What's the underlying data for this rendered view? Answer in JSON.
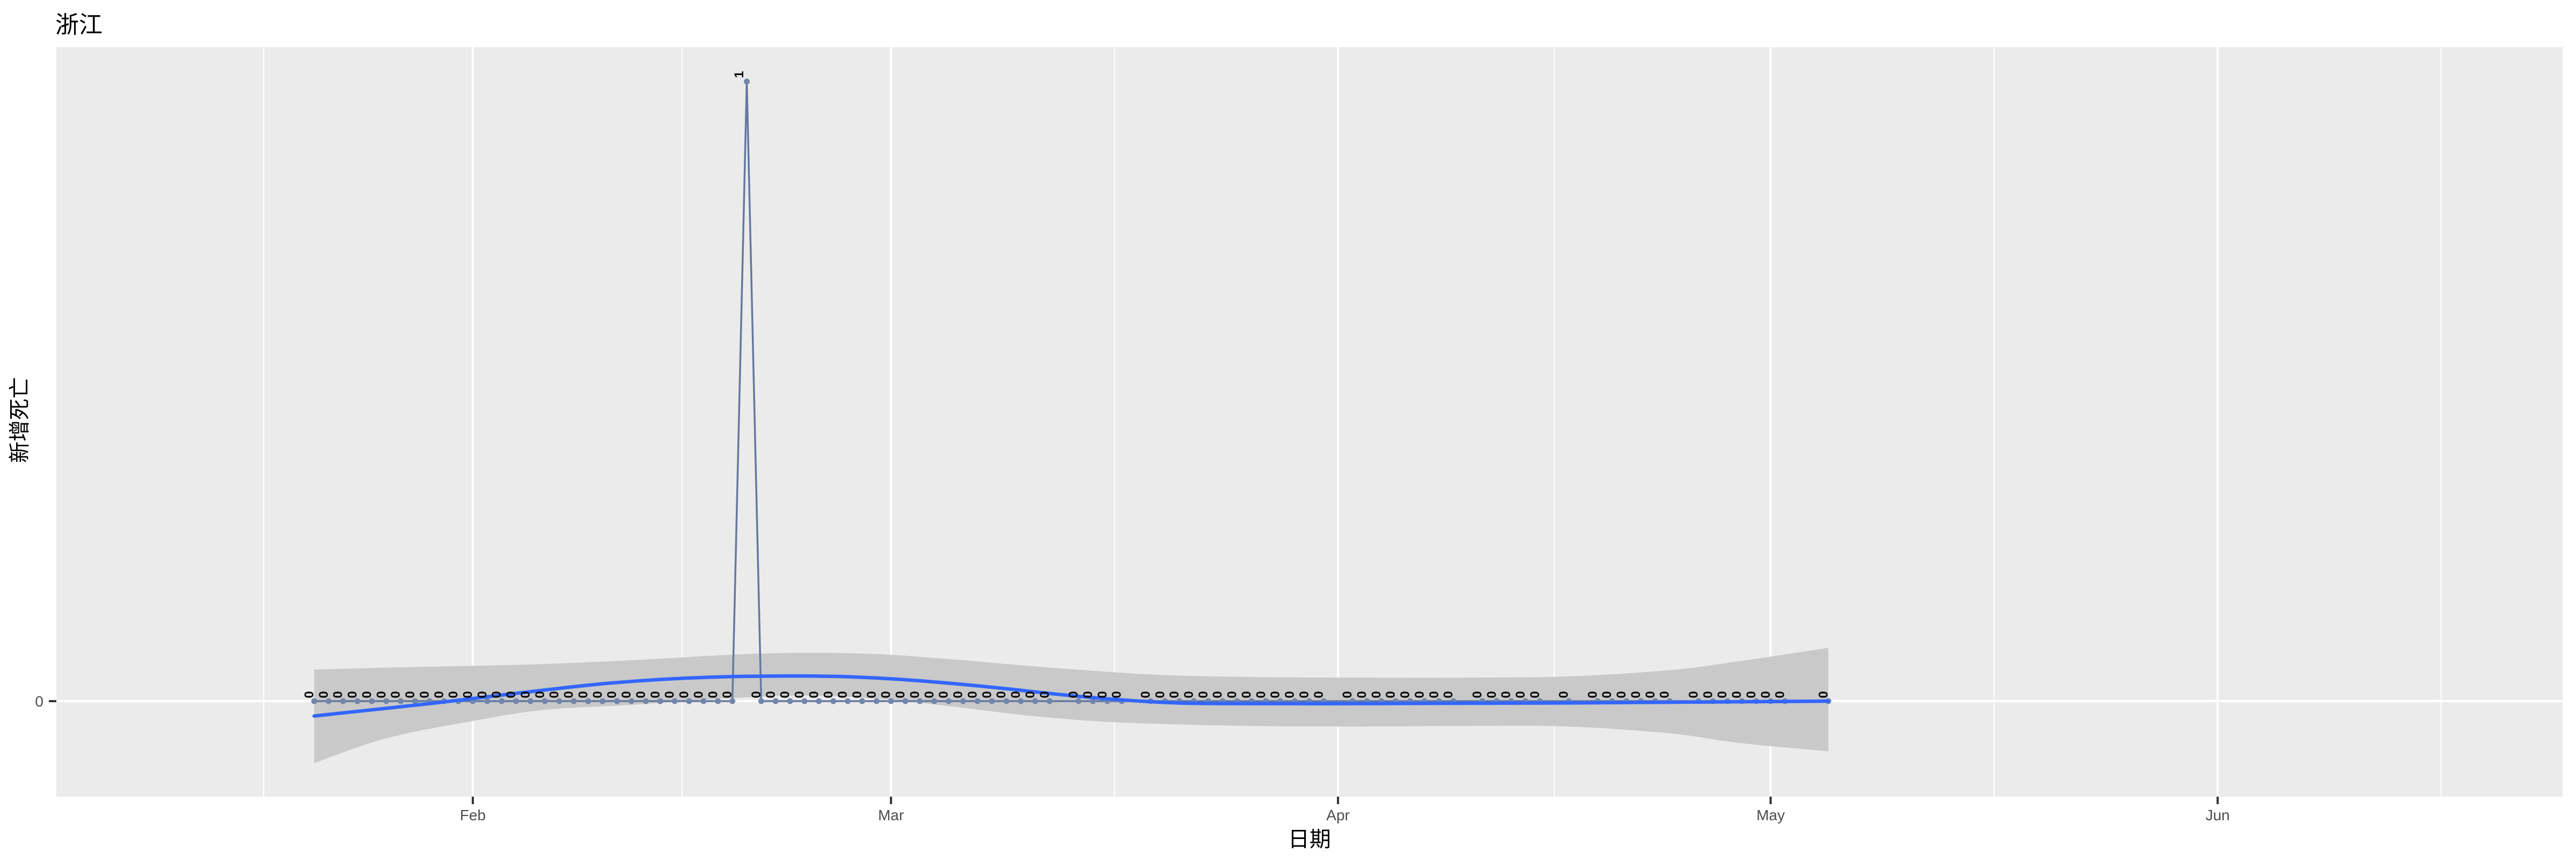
{
  "title": "浙江",
  "axes": {
    "x_title": "日期",
    "y_title": "新增死亡",
    "x_ticks": [
      {
        "label": "Feb",
        "date": "2020-02-01"
      },
      {
        "label": "Mar",
        "date": "2020-03-01"
      },
      {
        "label": "Apr",
        "date": "2020-04-01"
      },
      {
        "label": "May",
        "date": "2020-05-01"
      },
      {
        "label": "Jun",
        "date": "2020-06-01"
      }
    ],
    "y_ticks": [
      {
        "label": "0",
        "value": 0
      }
    ]
  },
  "chart_data": {
    "type": "line",
    "title": "浙江",
    "xlabel": "日期",
    "ylabel": "新增死亡",
    "x_range": [
      "2020-01-03",
      "2020-06-25"
    ],
    "ylim": [
      -0.154,
      1.055
    ],
    "grid": "major month gridlines + mid-month minor gridlines, horizontal line at 0",
    "points": {
      "start_date": "2020-01-21",
      "end_date": "2020-05-05",
      "default_value": 0,
      "exceptions": [
        {
          "date": "2020-02-20",
          "value": 1
        }
      ],
      "missing_dates": [
        "2020-03-13",
        "2020-03-18",
        "2020-04-01",
        "2020-04-10",
        "2020-04-16",
        "2020-04-18",
        "2020-04-25",
        "2020-05-03",
        "2020-05-04"
      ],
      "label_each_point_with_value": true,
      "label_rotation_deg": -90
    },
    "smooth_line": [
      [
        "2020-01-21",
        -0.024
      ],
      [
        "2020-01-25",
        -0.014
      ],
      [
        "2020-01-29",
        -0.004
      ],
      [
        "2020-02-02",
        0.007
      ],
      [
        "2020-02-06",
        0.018
      ],
      [
        "2020-02-10",
        0.028
      ],
      [
        "2020-02-14",
        0.035
      ],
      [
        "2020-02-18",
        0.039
      ],
      [
        "2020-02-22",
        0.0405
      ],
      [
        "2020-02-26",
        0.04
      ],
      [
        "2020-03-01",
        0.036
      ],
      [
        "2020-03-05",
        0.029
      ],
      [
        "2020-03-09",
        0.02
      ],
      [
        "2020-03-13",
        0.01
      ],
      [
        "2020-03-17",
        0.002
      ],
      [
        "2020-03-21",
        -0.003
      ],
      [
        "2020-03-26",
        -0.004
      ],
      [
        "2020-04-02",
        -0.004
      ],
      [
        "2020-04-09",
        -0.0035
      ],
      [
        "2020-04-16",
        -0.003
      ],
      [
        "2020-04-23",
        -0.002
      ],
      [
        "2020-04-29",
        -0.001
      ],
      [
        "2020-05-05",
        0.0
      ]
    ],
    "ci_ribbon": [
      [
        "2020-01-21",
        -0.1,
        0.051
      ],
      [
        "2020-01-26",
        -0.06,
        0.054
      ],
      [
        "2020-02-01",
        -0.032,
        0.057
      ],
      [
        "2020-02-06",
        -0.014,
        0.06
      ],
      [
        "2020-02-12",
        -0.006,
        0.066
      ],
      [
        "2020-02-19",
        0.005,
        0.075
      ],
      [
        "2020-02-24",
        0.009,
        0.078
      ],
      [
        "2020-02-29",
        0.004,
        0.076
      ],
      [
        "2020-03-05",
        -0.008,
        0.068
      ],
      [
        "2020-03-10",
        -0.022,
        0.058
      ],
      [
        "2020-03-15",
        -0.032,
        0.049
      ],
      [
        "2020-03-20",
        -0.037,
        0.042
      ],
      [
        "2020-03-26",
        -0.04,
        0.039
      ],
      [
        "2020-04-02",
        -0.041,
        0.038
      ],
      [
        "2020-04-10",
        -0.04,
        0.038
      ],
      [
        "2020-04-17",
        -0.041,
        0.04
      ],
      [
        "2020-04-24",
        -0.052,
        0.05
      ],
      [
        "2020-04-29",
        -0.068,
        0.065
      ],
      [
        "2020-05-05",
        -0.081,
        0.086
      ]
    ],
    "colors": {
      "panel_background": "#EBEBEB",
      "gridline": "#FFFFFF",
      "ribbon": "#C9C9C9",
      "smooth_line": "#3366FF",
      "data_line": "#6478A0",
      "point": "#7285AA",
      "point_label": "#0A0A0A",
      "tick_text": "#4D4D4D",
      "tick_mark": "#333333",
      "title_text": "#000000"
    }
  }
}
